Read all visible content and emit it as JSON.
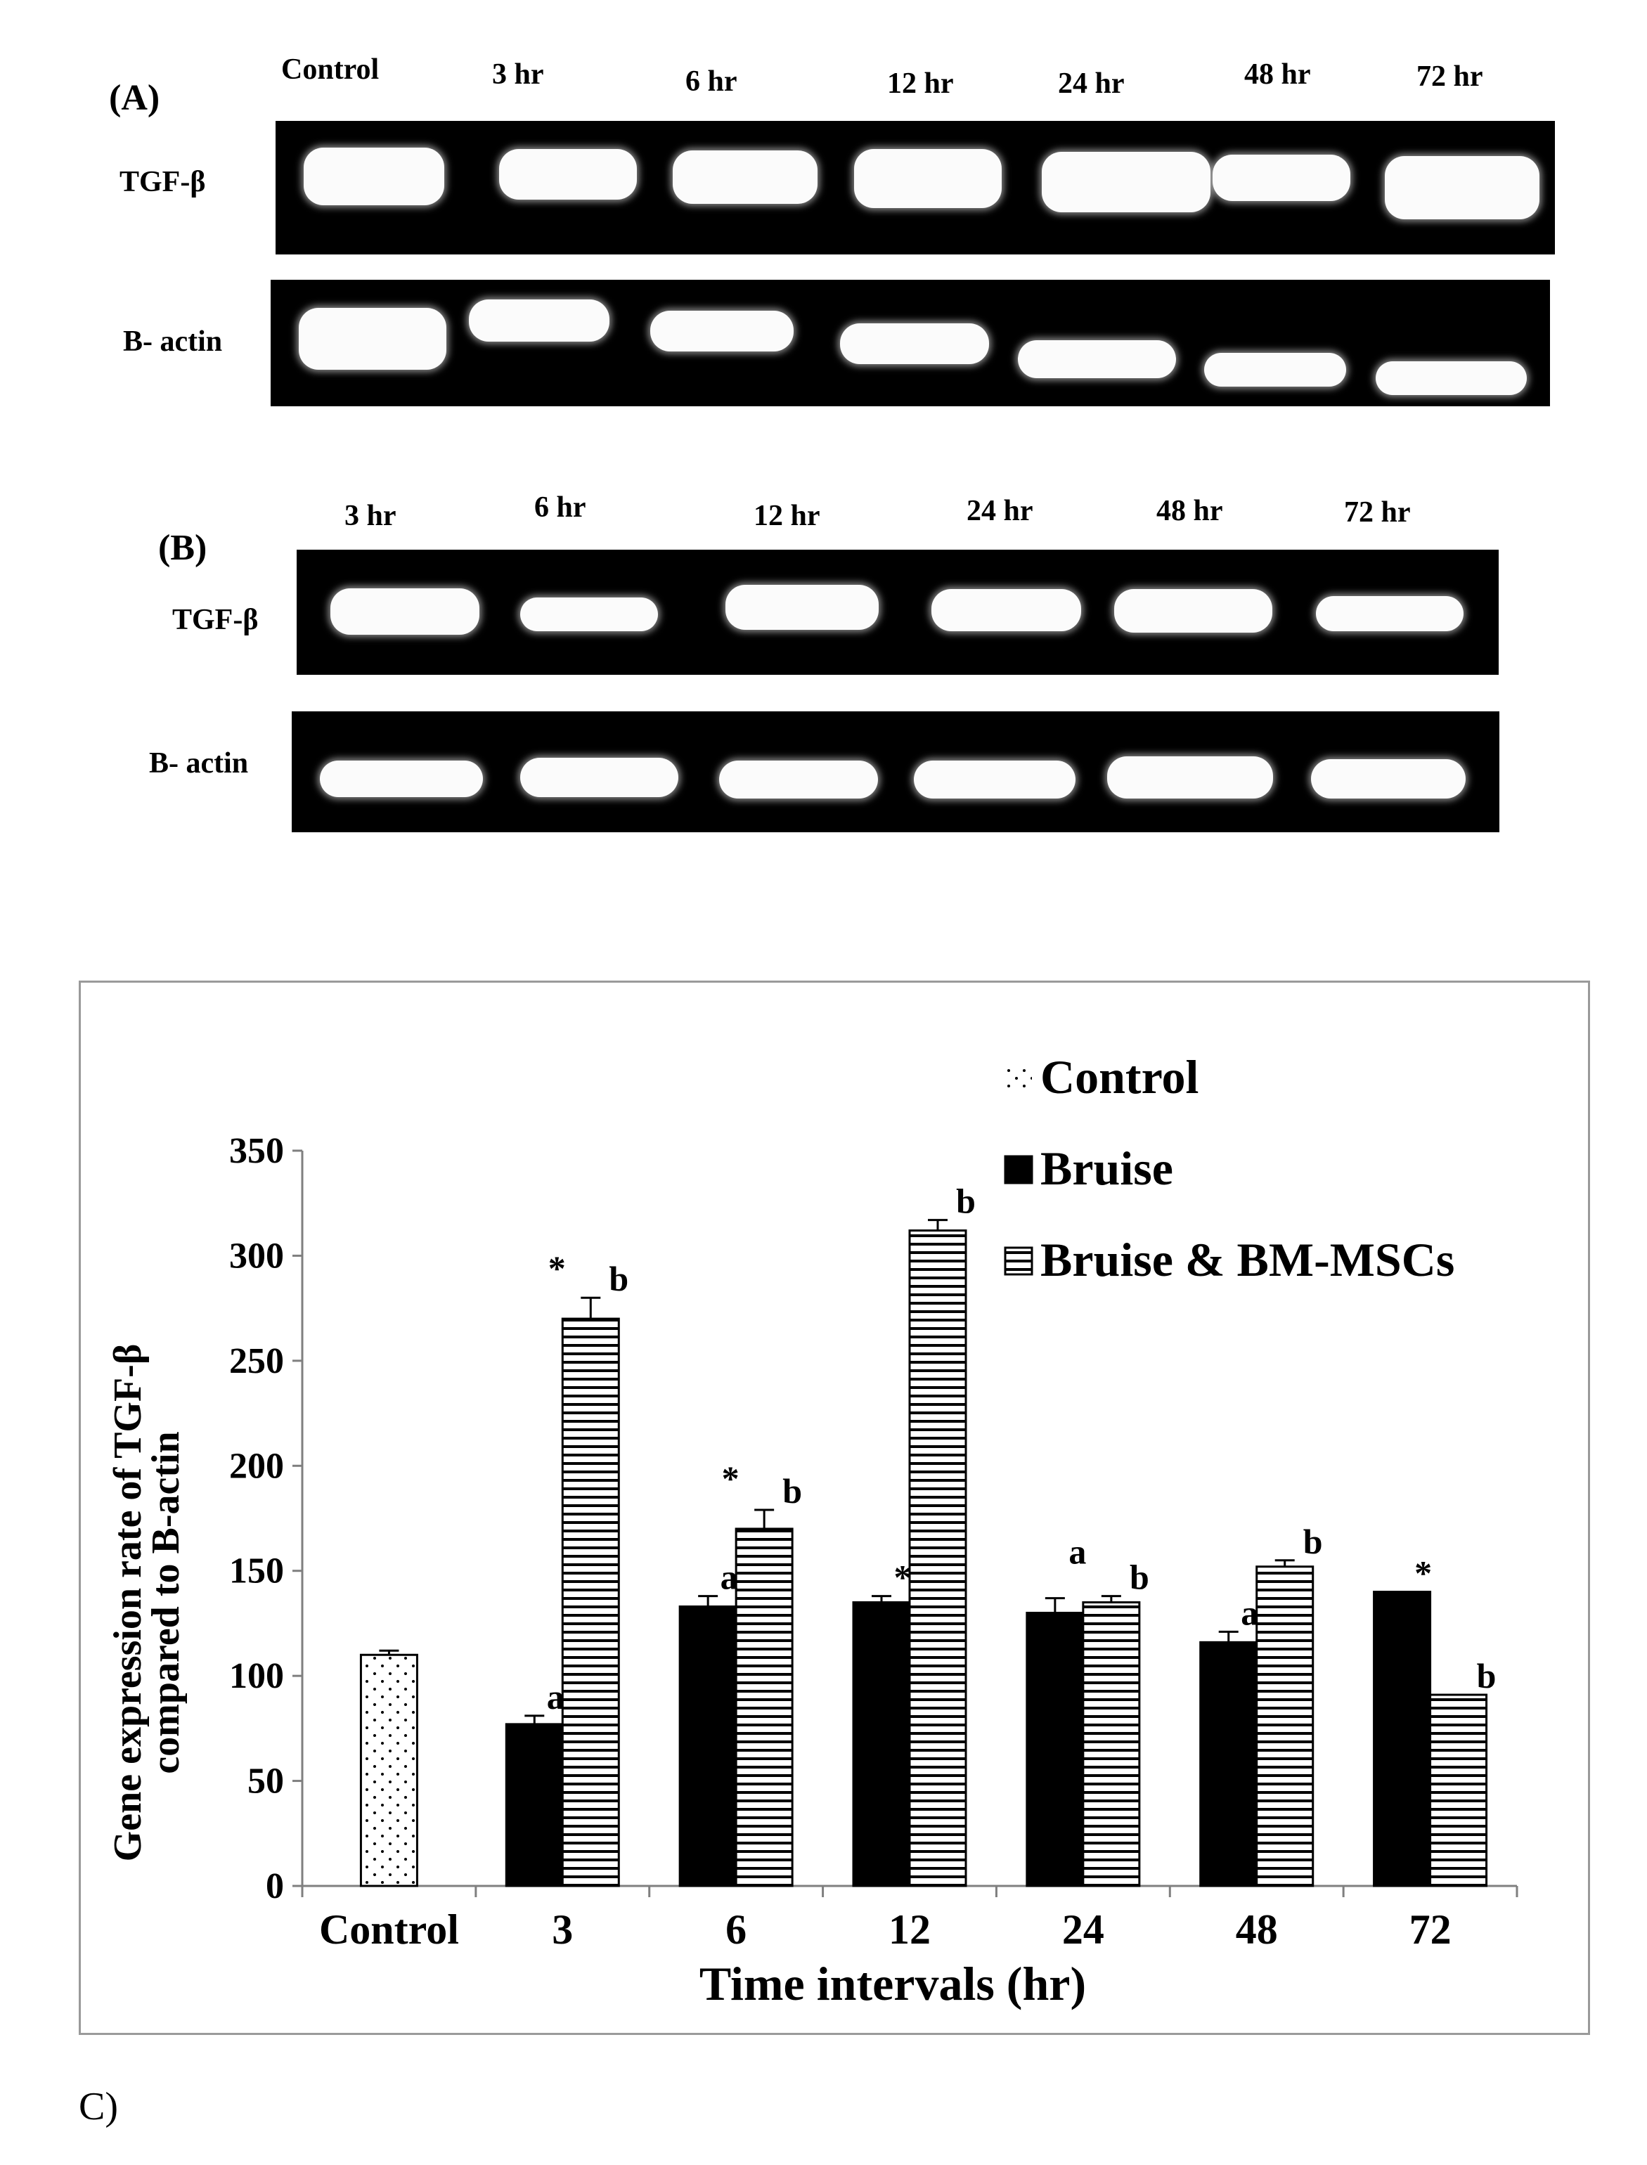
{
  "panel_a": {
    "letter": "(A)",
    "lanes": [
      "Control",
      "3 hr",
      "6 hr",
      "12 hr",
      "24 hr",
      "48 hr",
      "72 hr"
    ],
    "rows": [
      "TGF-β",
      "B- actin"
    ]
  },
  "panel_b": {
    "letter": "(B)",
    "lanes": [
      "3 hr",
      "6 hr",
      "12 hr",
      "24 hr",
      "48 hr",
      "72 hr"
    ],
    "rows": [
      "TGF-β",
      "B- actin"
    ]
  },
  "chart_data": {
    "type": "bar",
    "title": "",
    "xlabel": "Time intervals (hr)",
    "ylabel": "Gene expression rate of TGF-β compared to B-actin",
    "ylim": [
      0,
      350
    ],
    "yticks": [
      0,
      50,
      100,
      150,
      200,
      250,
      300,
      350
    ],
    "categories": [
      "Control",
      "3",
      "6",
      "12",
      "24",
      "48",
      "72"
    ],
    "legend_position": "top-right",
    "series": [
      {
        "name": "Control",
        "pattern": "dots",
        "values": [
          110,
          null,
          null,
          null,
          null,
          null,
          null
        ],
        "errors": [
          2,
          null,
          null,
          null,
          null,
          null,
          null
        ],
        "labels": [
          "",
          "",
          "",
          "",
          "",
          "",
          ""
        ]
      },
      {
        "name": "Bruise",
        "pattern": "solid",
        "values": [
          null,
          77,
          133,
          135,
          130,
          116,
          140
        ],
        "errors": [
          null,
          4,
          5,
          3,
          7,
          5,
          0
        ],
        "labels": [
          "",
          "a",
          "a",
          "*",
          "",
          "a",
          "*"
        ]
      },
      {
        "name": "Bruise & BM-MSCs",
        "pattern": "hlines",
        "values": [
          null,
          270,
          170,
          312,
          135,
          152,
          91
        ],
        "errors": [
          null,
          10,
          9,
          5,
          3,
          3,
          0
        ],
        "labels": [
          "",
          "b",
          "b",
          "b",
          "b",
          "b",
          "b"
        ]
      }
    ],
    "extra_marks": [
      {
        "category": "3",
        "text": "*"
      },
      {
        "category": "6",
        "text": "*"
      },
      {
        "category": "24",
        "text": "a"
      }
    ]
  },
  "caption": "C)"
}
